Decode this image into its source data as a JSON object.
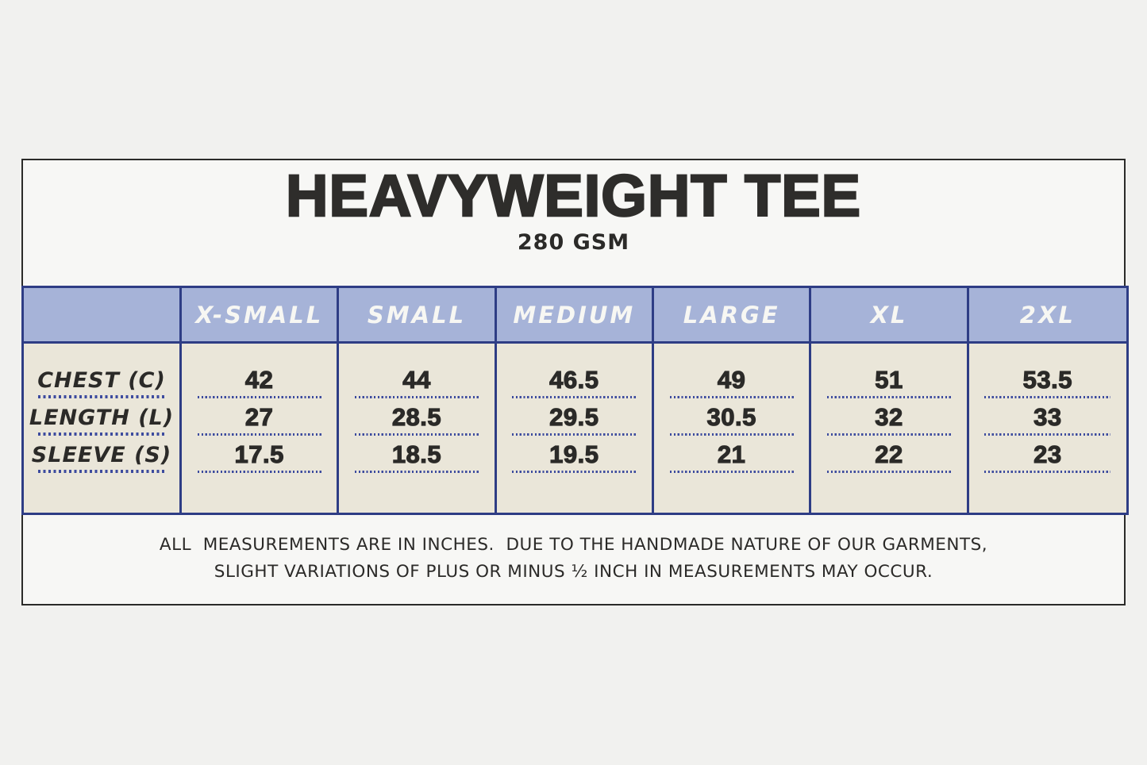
{
  "header": {
    "title": "HEAVYWEIGHT TEE",
    "subtitle": "280 GSM"
  },
  "table": {
    "row_labels": [
      "CHEST (C)",
      "LENGTH (L)",
      "SLEEVE (S)"
    ],
    "columns": [
      {
        "label": "X-SMALL",
        "values": [
          "42",
          "27",
          "17.5"
        ]
      },
      {
        "label": "SMALL",
        "values": [
          "44",
          "28.5",
          "18.5"
        ]
      },
      {
        "label": "MEDIUM",
        "values": [
          "46.5",
          "29.5",
          "19.5"
        ]
      },
      {
        "label": "LARGE",
        "values": [
          "49",
          "30.5",
          "21"
        ]
      },
      {
        "label": "XL",
        "values": [
          "51",
          "32",
          "22"
        ]
      },
      {
        "label": "2XL",
        "values": [
          "53.5",
          "33",
          "23"
        ]
      }
    ]
  },
  "footer": {
    "line1": "ALL  MEASUREMENTS ARE IN INCHES.  DUE TO THE HANDMADE NATURE OF OUR GARMENTS,",
    "line2": "SLIGHT VARIATIONS OF PLUS OR MINUS ½ INCH IN MEASUREMENTS MAY OCCUR."
  },
  "colors": {
    "page_background": "#f1f1ef",
    "card_background": "#f7f7f5",
    "card_border": "#2b2b29",
    "table_border": "#2e3d85",
    "header_fill": "#a6b3d8",
    "header_text": "#f7f7f3",
    "body_fill": "#eae6d9",
    "dotted_line": "#3c4b9e",
    "text": "#2b2a28"
  }
}
